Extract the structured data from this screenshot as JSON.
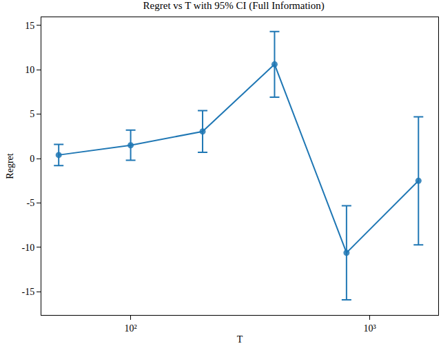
{
  "chart_data": {
    "type": "line",
    "title": "Regret vs T with 95% CI (Full Information)",
    "x_label": "T",
    "y_label": "Regret",
    "x": [
      50,
      100,
      200,
      400,
      800,
      1600
    ],
    "values": [
      0.4,
      1.5,
      3.05,
      10.6,
      -10.6,
      -2.5
    ],
    "errors": [
      1.2,
      1.7,
      2.35,
      3.7,
      5.3,
      7.2
    ],
    "color": "#1f77b4",
    "marker": "circle",
    "line_style": "solid",
    "log": "x",
    "grid": false,
    "xlim": [
      42.3,
      1936
    ],
    "xticks": [
      {
        "value": 100,
        "label": "10²"
      },
      {
        "value": 1000,
        "label": "10³"
      }
    ],
    "ylim": [
      -17.6,
      15.9
    ],
    "yticks": [
      -15,
      -10,
      -5,
      0,
      5,
      10,
      15
    ]
  }
}
